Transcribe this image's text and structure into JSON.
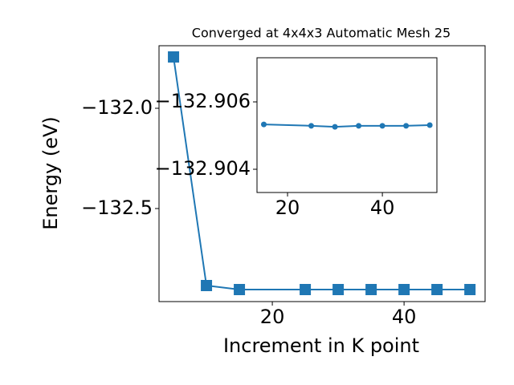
{
  "chart_data": [
    {
      "type": "line",
      "title": "Converged at 4x4x3 Automatic Mesh 25",
      "x_label": "Increment in K point",
      "y_label": "Energy (eV)",
      "x": [
        5,
        10,
        15,
        25,
        30,
        35,
        40,
        45,
        50
      ],
      "series": [
        {
          "color": "#1f77b4",
          "marker": "square",
          "values": [
            -131.744,
            -132.884,
            -132.904,
            -132.904,
            -132.904,
            -132.904,
            -132.904,
            -132.904,
            -132.904
          ]
        }
      ],
      "xlim": [
        2.8,
        52.3
      ],
      "xticks": [
        20,
        40
      ],
      "ylim": [
        -132.964,
        -131.688
      ],
      "yticks": [
        {
          "value": -132.5,
          "label": "−132.5"
        },
        {
          "value": -132.0,
          "label": "−132.0"
        }
      ]
    },
    {
      "type": "line",
      "x": [
        15,
        25,
        30,
        35,
        40,
        45,
        50
      ],
      "series": [
        {
          "color": "#1f77b4",
          "marker": "circle",
          "values": [
            -132.90533,
            -132.90529,
            -132.90526,
            -132.90529,
            -132.90529,
            -132.90529,
            -132.90531
          ]
        }
      ],
      "xlim": [
        13.56,
        51.5
      ],
      "xticks": [
        20,
        40
      ],
      "ylim": [
        -132.90331,
        -132.90731
      ],
      "yticks": [
        {
          "value": -132.904,
          "label": "−132.904"
        },
        {
          "value": -132.906,
          "label": "−132.906"
        }
      ]
    }
  ]
}
